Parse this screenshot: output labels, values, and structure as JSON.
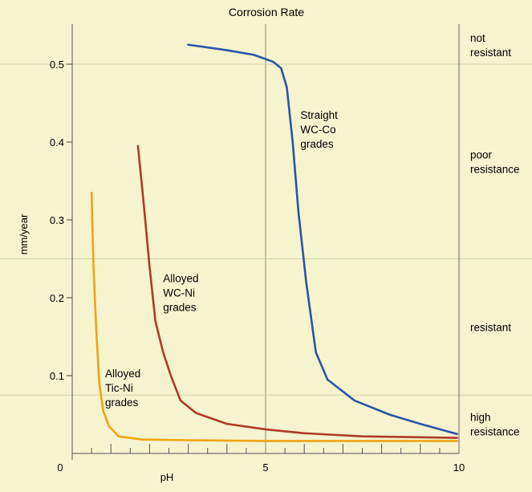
{
  "chart_data": {
    "type": "line",
    "title": "Corrosion Rate",
    "xlabel": "pH",
    "ylabel": "mm/year",
    "xlim": [
      0,
      10
    ],
    "ylim": [
      0,
      0.55
    ],
    "x_ticks": [
      {
        "value": 0,
        "label": "0"
      },
      {
        "value": 5,
        "label": "5"
      },
      {
        "value": 10,
        "label": "10"
      }
    ],
    "y_ticks": [
      {
        "value": 0.1,
        "label": "0.1"
      },
      {
        "value": 0.2,
        "label": "0.2"
      },
      {
        "value": 0.3,
        "label": "0.3"
      },
      {
        "value": 0.4,
        "label": "0.4"
      },
      {
        "value": 0.5,
        "label": "0.5"
      }
    ],
    "grid": true,
    "zones": [
      {
        "label": [
          "not",
          "resistant"
        ],
        "from": 0.5,
        "to": 0.55
      },
      {
        "label": [
          "poor",
          "resistance"
        ],
        "from": 0.25,
        "to": 0.5
      },
      {
        "label": [
          "resistant"
        ],
        "from": 0.075,
        "to": 0.25
      },
      {
        "label": [
          "high",
          "resistance"
        ],
        "from": 0.0,
        "to": 0.075
      }
    ],
    "series": [
      {
        "name": "Straight WC-Co grades",
        "label_lines": [
          "Straight",
          "WC-Co",
          "grades"
        ],
        "label_at": {
          "x": 5.9,
          "y": 0.43
        },
        "color": "#2a55a8",
        "x": [
          3.0,
          4.0,
          4.7,
          5.2,
          5.4,
          5.55,
          5.7,
          5.85,
          6.05,
          6.3,
          6.6,
          7.3,
          8.2,
          9.0,
          9.95
        ],
        "y": [
          0.525,
          0.518,
          0.512,
          0.503,
          0.495,
          0.47,
          0.4,
          0.31,
          0.22,
          0.13,
          0.095,
          0.068,
          0.05,
          0.038,
          0.025
        ]
      },
      {
        "name": "Alloyed WC-Ni grades",
        "label_lines": [
          "Alloyed",
          "WC-Ni",
          "grades"
        ],
        "label_at": {
          "x": 2.35,
          "y": 0.22
        },
        "color": "#b03a26",
        "x": [
          1.7,
          1.85,
          2.0,
          2.15,
          2.35,
          2.55,
          2.8,
          3.2,
          4.0,
          5.0,
          6.0,
          7.5,
          9.95
        ],
        "y": [
          0.395,
          0.32,
          0.24,
          0.17,
          0.13,
          0.1,
          0.068,
          0.052,
          0.038,
          0.031,
          0.026,
          0.022,
          0.02
        ]
      },
      {
        "name": "Alloyed Tic-Ni grades",
        "label_lines": [
          "Alloyed",
          "Tic-Ni",
          "grades"
        ],
        "label_at": {
          "x": 0.85,
          "y": 0.098
        },
        "color": "#f0a414",
        "x": [
          0.5,
          0.55,
          0.62,
          0.7,
          0.8,
          0.95,
          1.2,
          1.8,
          3.0,
          5.0,
          7.5,
          9.95
        ],
        "y": [
          0.335,
          0.24,
          0.16,
          0.09,
          0.055,
          0.035,
          0.022,
          0.018,
          0.017,
          0.016,
          0.016,
          0.016
        ]
      }
    ]
  }
}
